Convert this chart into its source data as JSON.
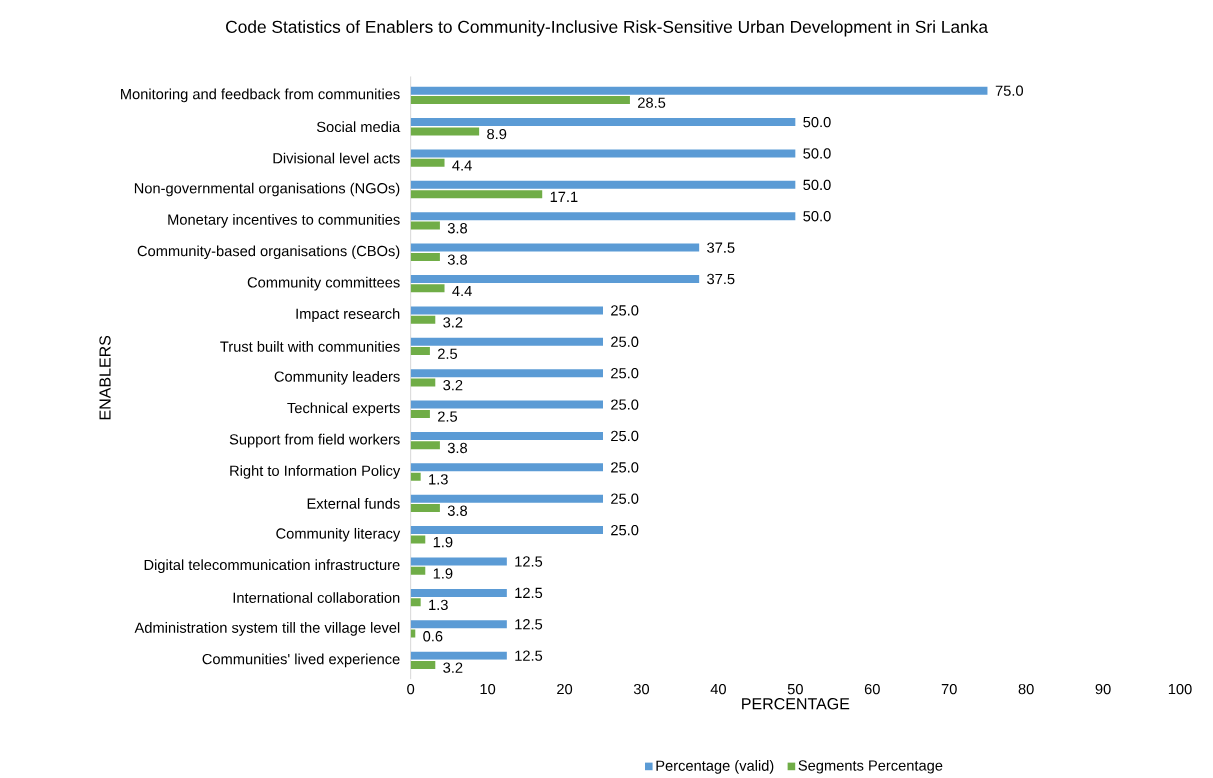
{
  "chart_data": {
    "type": "bar",
    "orientation": "horizontal",
    "title": "Code Statistics of Enablers to Community-Inclusive Risk-Sensitive Urban Development in Sri Lanka",
    "xlabel": "PERCENTAGE",
    "ylabel": "ENABLERS",
    "categories": [
      "Monitoring and feedback from communities",
      "Social media",
      "Divisional level acts",
      "Non-governmental organisations (NGOs)",
      "Monetary incentives to communities",
      "Community-based organisations (CBOs)",
      "Community committees",
      "Impact research",
      "Trust built with communities",
      "Community leaders",
      "Technical experts",
      "Support from field workers",
      "Right to Information Policy",
      "External funds",
      "Community literacy",
      "Digital telecommunication infrastructure",
      "International collaboration",
      "Administration system till the village level",
      "Communities' lived experience"
    ],
    "series": [
      {
        "name": "Percentage (valid)",
        "color": "#5b9bd5",
        "values": [
          75.0,
          50.0,
          50.0,
          50.0,
          50.0,
          37.5,
          37.5,
          25.0,
          25.0,
          25.0,
          25.0,
          25.0,
          25.0,
          25.0,
          25.0,
          12.5,
          12.5,
          12.5,
          12.5
        ],
        "value_labels": [
          "75.0",
          "50.0",
          "50.0",
          "50.0",
          "50.0",
          "37.5",
          "37.5",
          "25.0",
          "25.0",
          "25.0",
          "25.0",
          "25.0",
          "25.0",
          "25.0",
          "25.0",
          "12.5",
          "12.5",
          "12.5",
          "12.5"
        ]
      },
      {
        "name": "Segments Percentage",
        "color": "#70ad47",
        "values": [
          28.5,
          8.9,
          4.4,
          17.1,
          3.8,
          3.8,
          4.4,
          3.2,
          2.5,
          3.2,
          2.5,
          3.8,
          1.3,
          3.8,
          1.9,
          1.9,
          1.3,
          0.6,
          3.2
        ],
        "value_labels": [
          "28.5",
          "8.9",
          "4.4",
          "17.1",
          "3.8",
          "3.8",
          "4.4",
          "3.2",
          "2.5",
          "3.2",
          "2.5",
          "3.8",
          "1.3",
          "3.8",
          "1.9",
          "1.9",
          "1.3",
          "0.6",
          "3.2"
        ]
      }
    ],
    "xlim": [
      0,
      100
    ],
    "xticks": [
      0,
      10,
      20,
      30,
      40,
      50,
      60,
      70,
      80,
      90,
      100
    ],
    "legend": "bottom"
  }
}
